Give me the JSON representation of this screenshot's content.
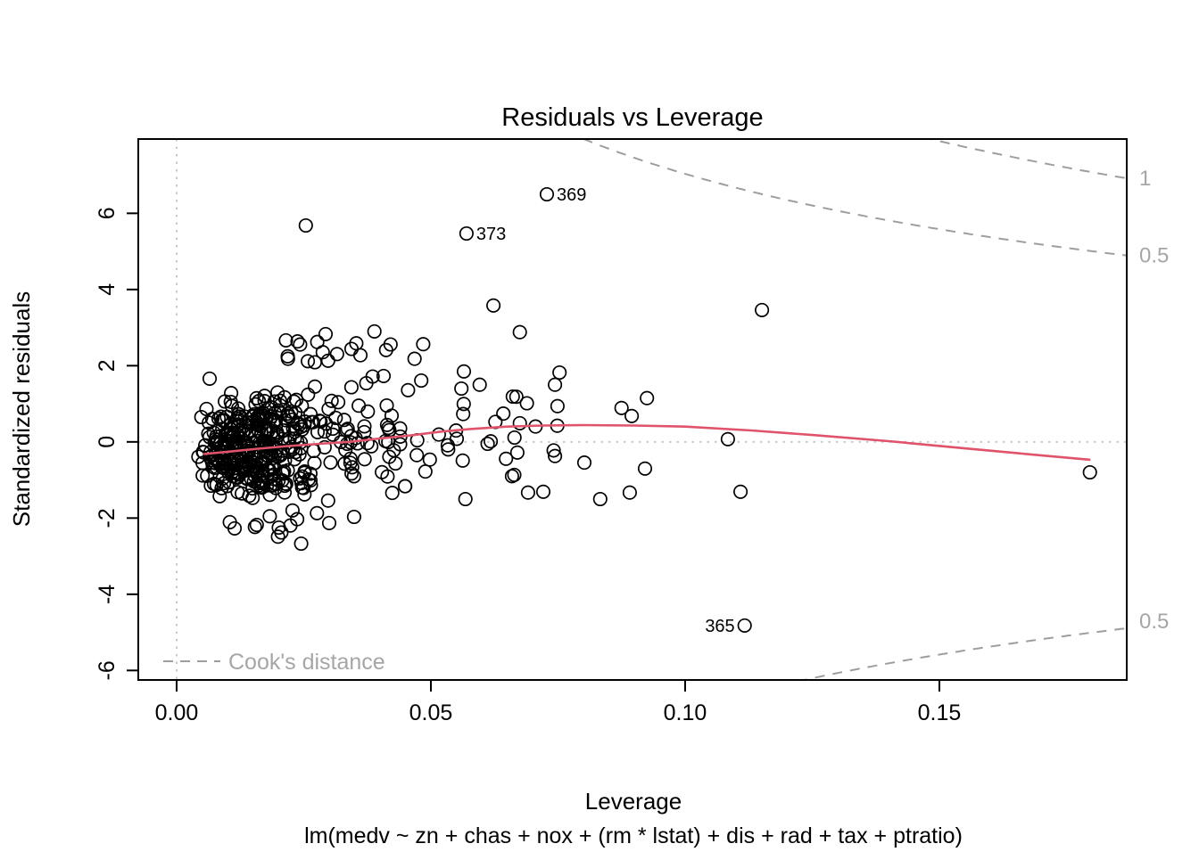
{
  "title": "Residuals vs Leverage",
  "chart_data": {
    "type": "scatter",
    "title": "Residuals vs Leverage",
    "xlabel": "Leverage",
    "ylabel": "Standardized residuals",
    "sublabel": "lm(medv ~ zn + chas + nox + (rm * lstat) + dis + rad + tax + ptratio)",
    "xlim": [
      -0.00754,
      0.18684
    ],
    "ylim": [
      -6.25,
      7.95
    ],
    "x_ticks": [
      {
        "v": 0.0,
        "label": "0.00"
      },
      {
        "v": 0.05,
        "label": "0.05"
      },
      {
        "v": 0.1,
        "label": "0.10"
      },
      {
        "v": 0.15,
        "label": "0.15"
      }
    ],
    "y_ticks": [
      {
        "v": -6,
        "label": "-6"
      },
      {
        "v": -4,
        "label": "-4"
      },
      {
        "v": -2,
        "label": "-2"
      },
      {
        "v": 0,
        "label": "0"
      },
      {
        "v": 2,
        "label": "2"
      },
      {
        "v": 4,
        "label": "4"
      },
      {
        "v": 6,
        "label": "6"
      }
    ],
    "grid": false,
    "reference_lines": {
      "horizontal_at": 0,
      "vertical_at": 0
    },
    "labeled_points": [
      {
        "id": "369",
        "x": 0.0728,
        "y": 6.5,
        "label_side": "right"
      },
      {
        "id": "373",
        "x": 0.057,
        "y": 5.47,
        "label_side": "right"
      },
      {
        "id": "365",
        "x": 0.1117,
        "y": -4.82,
        "label_side": "left"
      }
    ],
    "outlier_points": [
      [
        0.0254,
        5.68
      ],
      [
        0.0623,
        3.58
      ],
      [
        0.1151,
        3.46
      ],
      [
        0.0675,
        2.88
      ],
      [
        0.0389,
        2.9
      ],
      [
        0.0293,
        2.83
      ],
      [
        0.1796,
        -0.8
      ],
      [
        0.1084,
        0.07
      ],
      [
        0.1109,
        -1.31
      ],
      [
        0.0691,
        -1.33
      ],
      [
        0.0721,
        -1.31
      ],
      [
        0.0833,
        -1.5
      ],
      [
        0.0891,
        -1.33
      ],
      [
        0.0921,
        -0.7
      ],
      [
        0.0412,
        2.41
      ],
      [
        0.0219,
        2.18
      ],
      [
        0.0298,
        2.13
      ],
      [
        0.0468,
        2.18
      ],
      [
        0.0565,
        1.85
      ],
      [
        0.0753,
        1.82
      ],
      [
        0.0744,
        1.5
      ],
      [
        0.0596,
        1.5
      ],
      [
        0.056,
        1.4
      ],
      [
        0.0481,
        1.61
      ],
      [
        0.0661,
        1.19
      ],
      [
        0.0875,
        0.89
      ],
      [
        0.0895,
        0.68
      ],
      [
        0.0925,
        1.15
      ],
      [
        0.0675,
        0.49
      ],
      [
        0.0749,
        0.94
      ],
      [
        0.067,
        -0.28
      ],
      [
        0.0744,
        -0.37
      ],
      [
        0.0568,
        -1.5
      ],
      [
        0.0245,
        -2.67
      ],
      [
        0.03,
        -2.13
      ],
      [
        0.0237,
        -2.03
      ],
      [
        0.0276,
        -1.87
      ],
      [
        0.0349,
        -1.97
      ],
      [
        0.0298,
        -1.54
      ],
      [
        0.0407,
        1.73
      ],
      [
        0.0065,
        1.66
      ],
      [
        0.0373,
        1.54
      ]
    ],
    "cluster_blobs": {
      "note": "dense point cloud of ~461 additional observations, estimated distribution",
      "seed": 42,
      "blobs": [
        {
          "n": 210,
          "cx": 0.0135,
          "cy": -0.18,
          "sx": 0.0056,
          "sy": 0.42,
          "hmin": 0.0042,
          "hmax": 0.034,
          "rmin": -1.15,
          "rmax": 0.75
        },
        {
          "n": 85,
          "cx": 0.017,
          "cy": 0.55,
          "sx": 0.0072,
          "sy": 0.33,
          "hmin": 0.005,
          "hmax": 0.041,
          "rmin": 0.25,
          "rmax": 1.7
        },
        {
          "n": 65,
          "cx": 0.015,
          "cy": -1.0,
          "sx": 0.006,
          "sy": 0.3,
          "hmin": 0.005,
          "hmax": 0.038,
          "rmin": -1.85,
          "rmax": -0.55
        },
        {
          "n": 10,
          "cx": 0.016,
          "cy": -2.05,
          "sx": 0.0045,
          "sy": 0.28,
          "hmin": 0.008,
          "hmax": 0.029,
          "rmin": -2.55,
          "rmax": -1.72
        },
        {
          "n": 55,
          "cx": 0.037,
          "cy": 0.05,
          "sx": 0.0075,
          "sy": 0.75,
          "hmin": 0.027,
          "hmax": 0.054,
          "rmin": -1.55,
          "rmax": 1.75
        },
        {
          "n": 14,
          "cx": 0.03,
          "cy": 2.3,
          "sx": 0.009,
          "sy": 0.3,
          "hmin": 0.013,
          "hmax": 0.05,
          "rmin": 1.85,
          "rmax": 2.95
        },
        {
          "n": 22,
          "cx": 0.06,
          "cy": 0.35,
          "sx": 0.009,
          "sy": 0.85,
          "hmin": 0.047,
          "hmax": 0.082,
          "rmin": -1.5,
          "rmax": 1.85
        }
      ]
    },
    "smooth_line": [
      [
        0.0053,
        -0.32
      ],
      [
        0.01,
        -0.26
      ],
      [
        0.016,
        -0.18
      ],
      [
        0.022,
        -0.11
      ],
      [
        0.028,
        -0.05
      ],
      [
        0.034,
        0.0
      ],
      [
        0.04,
        0.09
      ],
      [
        0.046,
        0.17
      ],
      [
        0.052,
        0.27
      ],
      [
        0.058,
        0.34
      ],
      [
        0.065,
        0.4
      ],
      [
        0.072,
        0.43
      ],
      [
        0.08,
        0.44
      ],
      [
        0.09,
        0.43
      ],
      [
        0.1,
        0.4
      ],
      [
        0.113,
        0.3
      ],
      [
        0.125,
        0.18
      ],
      [
        0.14,
        0.02
      ],
      [
        0.155,
        -0.17
      ],
      [
        0.168,
        -0.33
      ],
      [
        0.1797,
        -0.47
      ]
    ],
    "cooks_distance": {
      "legend_label": "Cook's distance",
      "model_parameters_p": 11,
      "contour_levels": [
        0.5,
        1
      ],
      "right_edge_labels": [
        {
          "text": "1",
          "level": 1,
          "sign": 1
        },
        {
          "text": "0.5",
          "level": 0.5,
          "sign": 1
        },
        {
          "text": "0.5",
          "level": 0.5,
          "sign": -1
        }
      ]
    },
    "colors": {
      "point": "#000000",
      "smooth": "#DF536B",
      "cooks_dash": "#9e9e9e",
      "cooks_label": "#a6a6a6",
      "reference_dotted": "#c9c9c9",
      "text": "#000000",
      "background": "#ffffff"
    }
  }
}
